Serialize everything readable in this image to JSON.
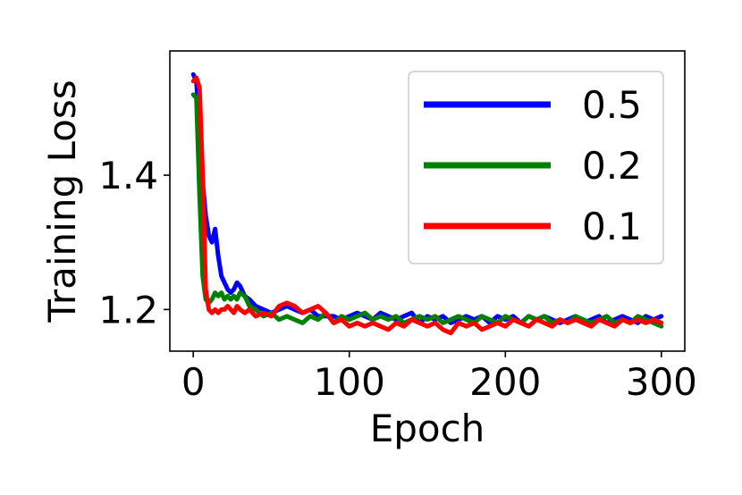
{
  "chart_data": {
    "type": "line",
    "xlabel": "Epoch",
    "ylabel": "Training Loss",
    "xlim": [
      -15,
      315
    ],
    "ylim": [
      1.138,
      1.585
    ],
    "x_ticks": [
      0,
      100,
      200,
      300
    ],
    "x_tick_labels": [
      "0",
      "100",
      "200",
      "300"
    ],
    "y_ticks": [
      1.2,
      1.4
    ],
    "y_tick_labels": [
      "1.2",
      "1.4"
    ],
    "grid": false,
    "legend_position": "top-right",
    "series": [
      {
        "name": "0.5",
        "color": "#0000ff",
        "x": [
          0,
          2,
          4,
          6,
          8,
          10,
          12,
          14,
          16,
          18,
          20,
          22,
          24,
          26,
          28,
          30,
          33,
          36,
          40,
          45,
          50,
          55,
          60,
          65,
          70,
          75,
          80,
          85,
          90,
          95,
          100,
          105,
          110,
          115,
          120,
          125,
          130,
          135,
          140,
          145,
          150,
          155,
          160,
          165,
          170,
          175,
          180,
          185,
          190,
          195,
          200,
          205,
          210,
          215,
          220,
          225,
          230,
          235,
          240,
          245,
          250,
          255,
          260,
          265,
          270,
          275,
          280,
          285,
          290,
          295,
          300
        ],
        "y": [
          1.55,
          1.54,
          1.47,
          1.39,
          1.34,
          1.31,
          1.3,
          1.32,
          1.28,
          1.25,
          1.24,
          1.23,
          1.225,
          1.23,
          1.24,
          1.235,
          1.22,
          1.215,
          1.205,
          1.2,
          1.195,
          1.2,
          1.205,
          1.2,
          1.195,
          1.2,
          1.19,
          1.19,
          1.19,
          1.185,
          1.19,
          1.195,
          1.19,
          1.185,
          1.195,
          1.19,
          1.185,
          1.19,
          1.195,
          1.18,
          1.19,
          1.185,
          1.19,
          1.18,
          1.185,
          1.19,
          1.185,
          1.19,
          1.18,
          1.19,
          1.185,
          1.19,
          1.18,
          1.19,
          1.185,
          1.19,
          1.185,
          1.18,
          1.185,
          1.19,
          1.18,
          1.185,
          1.19,
          1.18,
          1.185,
          1.19,
          1.185,
          1.18,
          1.19,
          1.185,
          1.19
        ]
      },
      {
        "name": "0.2",
        "color": "#008000",
        "x": [
          0,
          2,
          4,
          6,
          8,
          10,
          12,
          14,
          16,
          18,
          20,
          22,
          24,
          26,
          28,
          30,
          33,
          36,
          40,
          45,
          50,
          55,
          60,
          65,
          70,
          75,
          80,
          85,
          90,
          95,
          100,
          105,
          110,
          115,
          120,
          125,
          130,
          135,
          140,
          145,
          150,
          155,
          160,
          165,
          170,
          175,
          180,
          185,
          190,
          195,
          200,
          205,
          210,
          215,
          220,
          225,
          230,
          235,
          240,
          245,
          250,
          255,
          260,
          265,
          270,
          275,
          280,
          285,
          290,
          295,
          300
        ],
        "y": [
          1.52,
          1.515,
          1.37,
          1.25,
          1.215,
          1.21,
          1.215,
          1.225,
          1.22,
          1.225,
          1.215,
          1.22,
          1.215,
          1.22,
          1.215,
          1.225,
          1.22,
          1.205,
          1.2,
          1.19,
          1.195,
          1.185,
          1.19,
          1.185,
          1.18,
          1.19,
          1.185,
          1.195,
          1.18,
          1.19,
          1.185,
          1.19,
          1.195,
          1.185,
          1.19,
          1.185,
          1.19,
          1.18,
          1.185,
          1.19,
          1.185,
          1.19,
          1.18,
          1.185,
          1.19,
          1.185,
          1.18,
          1.19,
          1.185,
          1.18,
          1.19,
          1.185,
          1.18,
          1.19,
          1.185,
          1.19,
          1.18,
          1.185,
          1.18,
          1.19,
          1.185,
          1.18,
          1.185,
          1.19,
          1.18,
          1.185,
          1.18,
          1.19,
          1.185,
          1.18,
          1.175
        ]
      },
      {
        "name": "0.1",
        "color": "#ff0000",
        "x": [
          0,
          2,
          4,
          6,
          8,
          10,
          12,
          14,
          16,
          18,
          20,
          22,
          24,
          26,
          28,
          30,
          33,
          36,
          40,
          45,
          50,
          55,
          60,
          65,
          70,
          75,
          80,
          85,
          90,
          95,
          100,
          105,
          110,
          115,
          120,
          125,
          130,
          135,
          140,
          145,
          150,
          155,
          160,
          165,
          170,
          175,
          180,
          185,
          190,
          195,
          200,
          205,
          210,
          215,
          220,
          225,
          230,
          235,
          240,
          245,
          250,
          255,
          260,
          265,
          270,
          275,
          280,
          285,
          290,
          295,
          300
        ],
        "y": [
          1.54,
          1.545,
          1.53,
          1.4,
          1.23,
          1.2,
          1.195,
          1.2,
          1.195,
          1.2,
          1.2,
          1.205,
          1.2,
          1.195,
          1.205,
          1.2,
          1.195,
          1.2,
          1.19,
          1.195,
          1.19,
          1.205,
          1.21,
          1.205,
          1.195,
          1.2,
          1.205,
          1.195,
          1.18,
          1.185,
          1.175,
          1.18,
          1.175,
          1.18,
          1.175,
          1.17,
          1.18,
          1.175,
          1.185,
          1.18,
          1.175,
          1.18,
          1.17,
          1.165,
          1.18,
          1.175,
          1.18,
          1.17,
          1.175,
          1.18,
          1.175,
          1.185,
          1.18,
          1.175,
          1.185,
          1.18,
          1.175,
          1.185,
          1.18,
          1.185,
          1.18,
          1.175,
          1.185,
          1.18,
          1.175,
          1.185,
          1.18,
          1.185,
          1.18,
          1.185,
          1.18
        ]
      }
    ]
  }
}
